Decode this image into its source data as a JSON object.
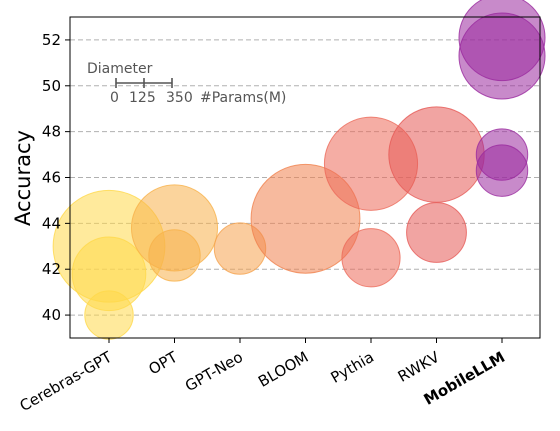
{
  "chart_data": {
    "type": "scatter",
    "ylabel": "Accuracy",
    "ylim": [
      39,
      53
    ],
    "yticks": [
      40,
      42,
      44,
      46,
      48,
      50,
      52
    ],
    "grid": true,
    "categories": [
      {
        "label": "Cerebras-GPT",
        "bold": false,
        "color": "#ffd84a"
      },
      {
        "label": "OPT",
        "bold": false,
        "color": "#f7b14a"
      },
      {
        "label": "GPT-Neo",
        "bold": false,
        "color": "#f5a24e"
      },
      {
        "label": "BLOOM",
        "bold": false,
        "color": "#f0824e"
      },
      {
        "label": "Pythia",
        "bold": false,
        "color": "#ec6a5a"
      },
      {
        "label": "RWKV",
        "bold": false,
        "color": "#e65a56"
      },
      {
        "label": "MobileLLM",
        "bold": true,
        "color": "#9a2a9f"
      }
    ],
    "points": [
      {
        "model": "Cerebras-GPT",
        "accuracy": 43.0,
        "params_m": 590
      },
      {
        "model": "Cerebras-GPT",
        "accuracy": 41.8,
        "params_m": 256
      },
      {
        "model": "Cerebras-GPT",
        "accuracy": 40.0,
        "params_m": 111
      },
      {
        "model": "OPT",
        "accuracy": 43.8,
        "params_m": 350
      },
      {
        "model": "OPT",
        "accuracy": 42.6,
        "params_m": 125
      },
      {
        "model": "GPT-Neo",
        "accuracy": 42.9,
        "params_m": 125
      },
      {
        "model": "BLOOM",
        "accuracy": 44.2,
        "params_m": 560
      },
      {
        "model": "Pythia",
        "accuracy": 46.6,
        "params_m": 410
      },
      {
        "model": "Pythia",
        "accuracy": 42.5,
        "params_m": 160
      },
      {
        "model": "RWKV",
        "accuracy": 47.0,
        "params_m": 430
      },
      {
        "model": "RWKV",
        "accuracy": 43.6,
        "params_m": 169
      },
      {
        "model": "MobileLLM",
        "accuracy": 52.1,
        "params_m": 350
      },
      {
        "model": "MobileLLM",
        "accuracy": 51.3,
        "params_m": 350
      },
      {
        "model": "MobileLLM",
        "accuracy": 47.0,
        "params_m": 125
      },
      {
        "model": "MobileLLM",
        "accuracy": 46.3,
        "params_m": 125
      }
    ],
    "size_legend": {
      "title": "Diameter",
      "ticks": [
        0,
        125,
        350
      ],
      "unit_label": "#Params(M)"
    }
  }
}
